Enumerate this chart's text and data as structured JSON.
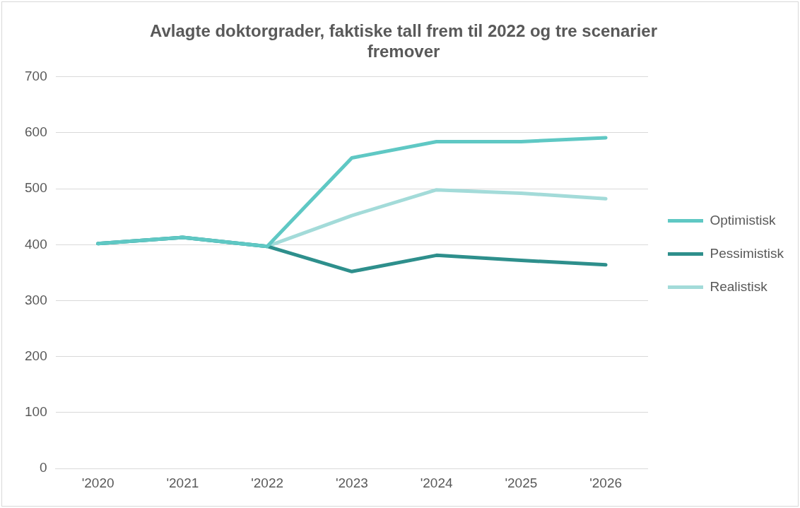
{
  "chart_data": {
    "type": "line",
    "title": "Avlagte doktorgrader, faktiske tall frem til 2022 og tre scenarier fremover",
    "categories": [
      "'2020",
      "'2021",
      "'2022",
      "'2023",
      "'2024",
      "'2025",
      "'2026"
    ],
    "series": [
      {
        "name": "Optimistisk",
        "color": "#5fc8c4",
        "values": [
          402,
          413,
          397,
          555,
          584,
          584,
          591
        ]
      },
      {
        "name": "Pessimistisk",
        "color": "#2e8f8c",
        "values": [
          402,
          413,
          397,
          352,
          381,
          372,
          364
        ]
      },
      {
        "name": "Realistisk",
        "color": "#a3dbd9",
        "values": [
          402,
          413,
          397,
          452,
          498,
          492,
          482
        ]
      }
    ],
    "ylim": [
      0,
      700
    ],
    "yticks": [
      0,
      100,
      200,
      300,
      400,
      500,
      600,
      700
    ],
    "grid": "y",
    "legend": "right",
    "marker": "none",
    "line_style": "solid"
  }
}
